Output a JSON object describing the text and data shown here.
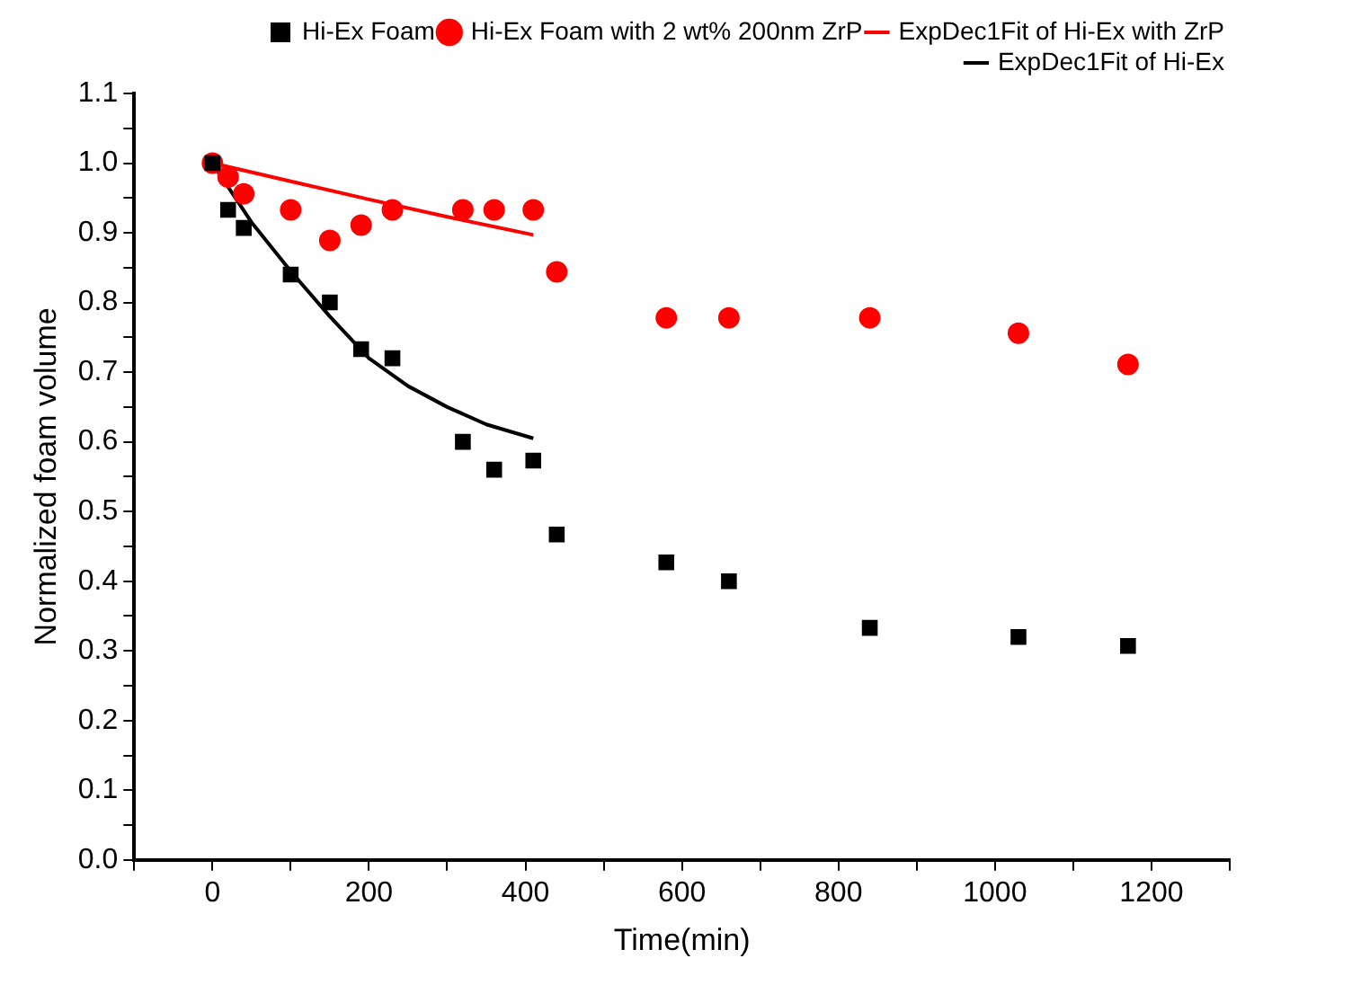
{
  "chart_data": {
    "type": "scatter",
    "xlabel": "Time(min)",
    "ylabel": "Normalized foam volume",
    "xlim": [
      -100,
      1300
    ],
    "ylim": [
      0,
      1.1
    ],
    "xticks": [
      {
        "value": -100,
        "label": null
      },
      0,
      {
        "value": 100,
        "label": null
      },
      200,
      {
        "value": 300,
        "label": null
      },
      400,
      {
        "value": 500,
        "label": null
      },
      600,
      {
        "value": 700,
        "label": null
      },
      800,
      {
        "value": 900,
        "label": null
      },
      1000,
      {
        "value": 1100,
        "label": null
      },
      1200,
      {
        "value": 1300,
        "label": null
      }
    ],
    "yticks": [
      {
        "value": 0,
        "label": "0.0"
      },
      {
        "value": 0.05,
        "label": null
      },
      0.1,
      {
        "value": 0.15,
        "label": null
      },
      0.2,
      {
        "value": 0.25,
        "label": null
      },
      0.3,
      {
        "value": 0.35,
        "label": null
      },
      0.4,
      {
        "value": 0.45,
        "label": null
      },
      0.5,
      {
        "value": 0.55,
        "label": null
      },
      0.6,
      {
        "value": 0.65,
        "label": null
      },
      0.7,
      {
        "value": 0.75,
        "label": null
      },
      0.8,
      {
        "value": 0.85,
        "label": null
      },
      0.9,
      {
        "value": 0.95,
        "label": null
      },
      {
        "value": 1,
        "label": "1.0"
      },
      {
        "value": 1.05,
        "label": null
      },
      1.1
    ],
    "grid": false,
    "legend": "top right",
    "series": [
      {
        "name": "Hi-Ex Foam",
        "color": "#000000",
        "marker": "square",
        "x": [
          0,
          20,
          40,
          100,
          150,
          190,
          230,
          320,
          360,
          410,
          440,
          580,
          660,
          840,
          1030,
          1170
        ],
        "values": [
          1.0,
          0.933,
          0.907,
          0.84,
          0.8,
          0.733,
          0.72,
          0.6,
          0.56,
          0.573,
          0.467,
          0.427,
          0.4,
          0.333,
          0.32,
          0.307
        ]
      },
      {
        "name": "Hi-Ex Foam with 2 wt% 200nm ZrP",
        "color": "#ff0000",
        "marker": "circle",
        "x": [
          0,
          20,
          40,
          100,
          150,
          190,
          230,
          320,
          360,
          410,
          440,
          580,
          660,
          840,
          1030,
          1170
        ],
        "values": [
          1.0,
          0.98,
          0.956,
          0.933,
          0.889,
          0.911,
          0.933,
          0.933,
          0.933,
          0.933,
          0.844,
          0.778,
          0.778,
          0.778,
          0.756,
          0.711
        ]
      },
      {
        "name": "ExpDec1Fit of Hi-Ex with ZrP",
        "color": "#ff0000",
        "type": "line",
        "marker": "none",
        "line_style": "solid",
        "x": [
          0,
          100,
          200,
          300,
          410
        ],
        "values": [
          1.0,
          0.974,
          0.948,
          0.923,
          0.897
        ]
      },
      {
        "name": "ExpDec1Fit of Hi-Ex",
        "color": "#000000",
        "type": "line",
        "marker": "none",
        "line_style": "solid",
        "x": [
          0,
          50,
          100,
          150,
          200,
          250,
          300,
          350,
          410
        ],
        "values": [
          1.0,
          0.915,
          0.845,
          0.78,
          0.72,
          0.68,
          0.65,
          0.625,
          0.605
        ]
      }
    ]
  }
}
